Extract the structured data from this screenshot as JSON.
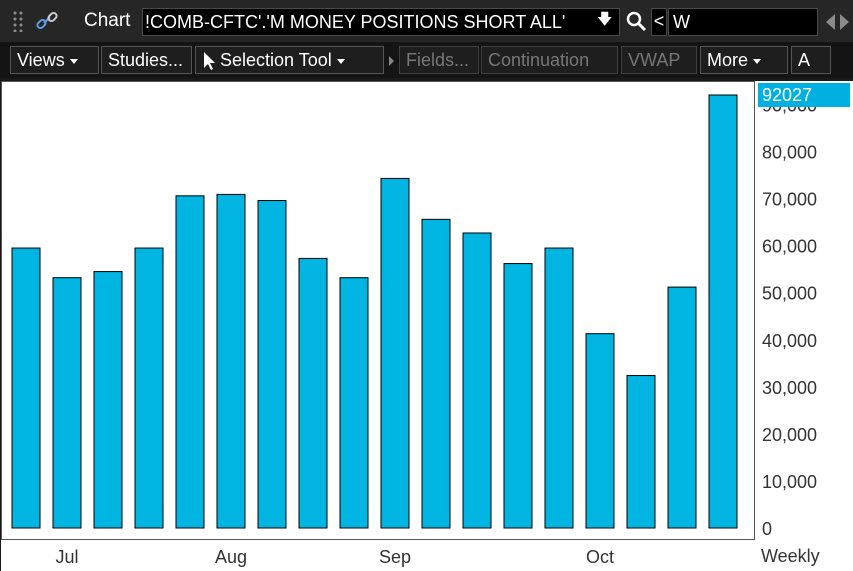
{
  "header": {
    "title": "Chart",
    "symbol": "!COMB-CFTC'.'M MONEY POSITIONS SHORT ALL'",
    "prev_label": "<",
    "aggregation": "W"
  },
  "toolbar": {
    "views": "Views",
    "studies": "Studies...",
    "selection_tool": "Selection Tool",
    "fields": "Fields...",
    "continuation": "Continuation",
    "vwap": "VWAP",
    "more": "More",
    "extra": "A"
  },
  "footer": {
    "aggregation_label": "Weekly"
  },
  "colors": {
    "bar": "#00b5e2",
    "bar_outline": "#000000",
    "last_tag": "#00b0e0"
  },
  "chart_data": {
    "type": "bar",
    "title": "",
    "xlabel": "",
    "ylabel": "",
    "ylim": [
      0,
      92027
    ],
    "y_ticks": [
      "0",
      "10,000",
      "20,000",
      "30,000",
      "40,000",
      "50,000",
      "60,000",
      "70,000",
      "80,000",
      "90,000"
    ],
    "x_ticks": [
      "Jul",
      "Aug",
      "Sep",
      "Oct"
    ],
    "values": [
      59500,
      53200,
      54500,
      59500,
      70600,
      70900,
      69600,
      57300,
      53200,
      74300,
      65600,
      62700,
      56200,
      59500,
      41300,
      32400,
      51200,
      92027
    ],
    "last_value": "92027",
    "grid": false
  }
}
